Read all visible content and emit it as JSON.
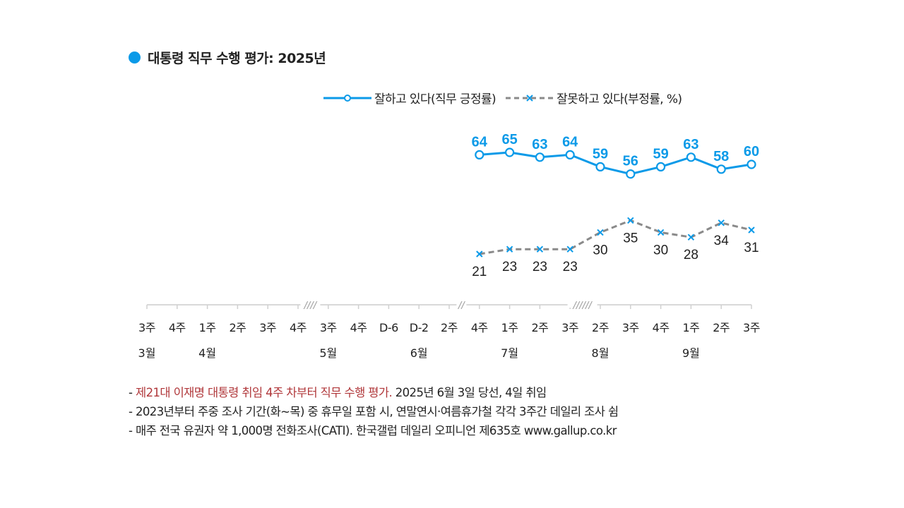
{
  "title": "대통령 직무 수행 평가: 2025년",
  "colors": {
    "accent": "#0b9ae8",
    "negative_line": "#8a8a8a",
    "note_red": "#b0373a"
  },
  "legend": {
    "positive": "잘하고 있다(직무 긍정률)",
    "negative": "잘못하고 있다(부정률, %)"
  },
  "chart_data": {
    "type": "line",
    "title": "대통령 직무 수행 평가: 2025년",
    "xlabel": "",
    "ylabel": "%",
    "x_ticks": [
      "3주",
      "4주",
      "1주",
      "2주",
      "3주",
      "4주",
      "3주",
      "4주",
      "D-6",
      "D-2",
      "2주",
      "4주",
      "1주",
      "2주",
      "3주",
      "2주",
      "3주",
      "4주",
      "1주",
      "2주",
      "3주"
    ],
    "month_labels": [
      {
        "label": "3월",
        "tick_index": 0
      },
      {
        "label": "4월",
        "tick_index": 2
      },
      {
        "label": "5월",
        "tick_index": 6
      },
      {
        "label": "6월",
        "tick_index": 9
      },
      {
        "label": "7월",
        "tick_index": 12
      },
      {
        "label": "8월",
        "tick_index": 15
      },
      {
        "label": "9월",
        "tick_index": 18
      }
    ],
    "axis_breaks": [
      {
        "after_tick": 5,
        "mark": "////"
      },
      {
        "after_tick": 10,
        "mark": "//"
      },
      {
        "after_tick": 14,
        "mark": "//////"
      }
    ],
    "categories": [
      "6월 4주",
      "7월 1주",
      "7월 2주",
      "7월 3주",
      "8월 2주",
      "8월 3주",
      "8월 4주",
      "9월 1주",
      "9월 2주",
      "9월 3주"
    ],
    "series": [
      {
        "name": "잘하고 있다(직무 긍정률)",
        "values": [
          64,
          65,
          63,
          64,
          59,
          56,
          59,
          63,
          58,
          60
        ],
        "style": "solid",
        "marker": "circle"
      },
      {
        "name": "잘못하고 있다(부정률, %)",
        "values": [
          21,
          23,
          23,
          23,
          30,
          35,
          30,
          28,
          34,
          31
        ],
        "style": "dashed",
        "marker": "x"
      }
    ],
    "grid": false,
    "legend_position": "top-right"
  },
  "notes": [
    {
      "red": "제21대 이재명 대통령 취임 4주 차부터 직무 수행 평가.",
      "text": " 2025년 6월 3일 당선, 4일 취임"
    },
    {
      "red": "",
      "text": "2023년부터 주중 조사 기간(화~목) 중 휴무일 포함 시, 연말연시·여름휴가철 각각 3주간 데일리 조사 쉼"
    },
    {
      "red": "",
      "text": "매주 전국 유권자 약 1,000명 전화조사(CATI). 한국갤럽 데일리 오피니언 제635호 www.gallup.co.kr"
    }
  ]
}
